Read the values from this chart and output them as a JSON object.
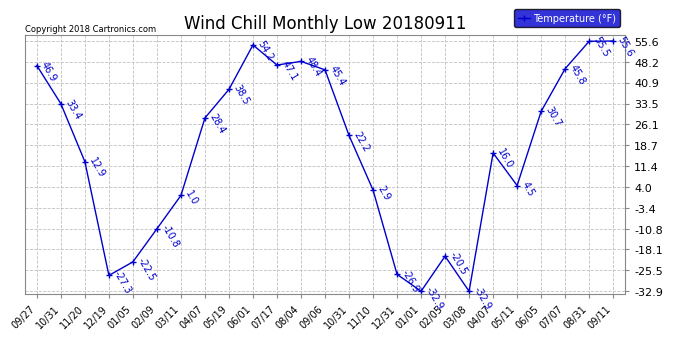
{
  "title": "Wind Chill Monthly Low 20180911",
  "legend_label": "Temperature (°F)",
  "copyright": "Copyright 2018 Cartronics.com",
  "x_labels": [
    "09/27",
    "10/31",
    "11/20",
    "12/19",
    "01/05",
    "02/09",
    "03/11",
    "04/07",
    "05/19",
    "06/01",
    "07/17",
    "08/04",
    "09/06",
    "10/31",
    "11/10",
    "12/31",
    "01/01",
    "02/05",
    "03/08",
    "04/07",
    "05/11",
    "06/05",
    "07/07",
    "08/31",
    "09/11"
  ],
  "y_values": [
    46.9,
    33.4,
    12.9,
    -27.3,
    -22.5,
    -10.8,
    1.0,
    28.4,
    38.5,
    54.2,
    47.1,
    48.4,
    45.4,
    22.2,
    2.9,
    -26.9,
    -32.9,
    -20.5,
    -32.9,
    16.0,
    4.5,
    30.7,
    45.8,
    55.5,
    55.6
  ],
  "point_labels": [
    "46.9",
    "33.4",
    "12.9",
    "-27.3",
    "-22.5",
    "-10.8",
    "1.0",
    "28.4",
    "38.5",
    "54.2",
    "47.1",
    "48.4",
    "45.4",
    "22.2",
    "2.9",
    "-26.9",
    "-32.9",
    "-20.5",
    "-32.9",
    "16.0",
    "4.5",
    "30.7",
    "45.8",
    "55.5",
    "55.6"
  ],
  "yticks": [
    55.6,
    48.2,
    40.9,
    33.5,
    26.1,
    18.7,
    11.4,
    4.0,
    -3.4,
    -10.8,
    -18.1,
    -25.5,
    -32.9
  ],
  "line_color": "#0000CD",
  "marker_color": "#0000CD",
  "bg_color": "#ffffff",
  "grid_color": "#c0c0c0",
  "title_fontsize": 12,
  "annotation_fontsize": 7,
  "tick_fontsize": 7,
  "legend_bg": "#0000CD",
  "legend_fg": "#ffffff"
}
